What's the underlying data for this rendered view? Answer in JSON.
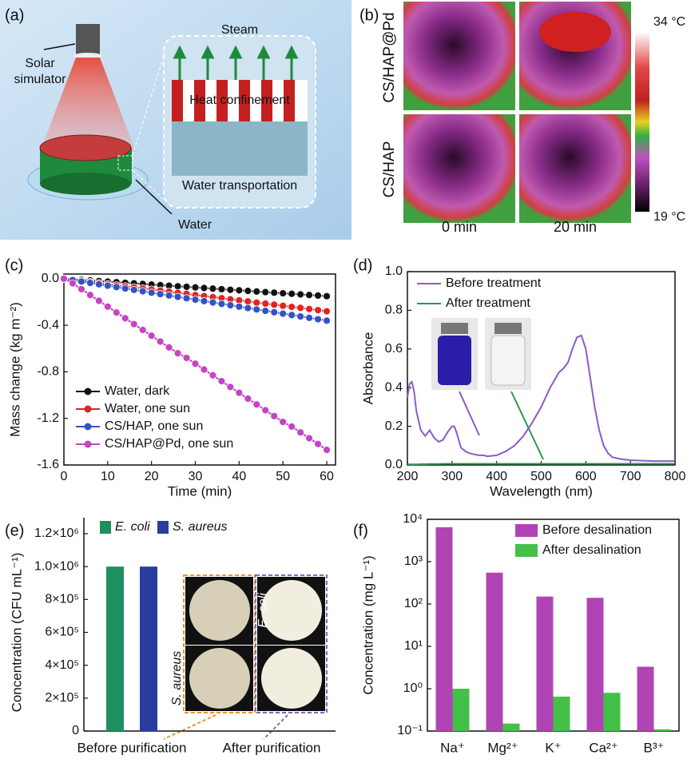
{
  "diagram": {
    "panel_label": "(a)",
    "source_label": [
      "Solar",
      "simulator"
    ],
    "steam": "Steam",
    "heat": "Heat confinement",
    "transport": "Water transportation",
    "water": "Water"
  },
  "thermal": {
    "panel_label": "(b)",
    "rows": [
      "CS/HAP@Pd",
      "CS/HAP"
    ],
    "columns": [
      "0 min",
      "20 min"
    ],
    "colorbar_max": "34 °C",
    "colorbar_min": "19 °C"
  },
  "chart_data": [
    {
      "panel_label": "(c)",
      "type": "line",
      "markers": true,
      "xlabel": "Time (min)",
      "ylabel": "Mass change (kg m⁻²)",
      "x": [
        0,
        2,
        4,
        6,
        8,
        10,
        12,
        14,
        16,
        18,
        20,
        22,
        24,
        26,
        28,
        30,
        32,
        34,
        36,
        38,
        40,
        42,
        44,
        46,
        48,
        50,
        52,
        54,
        56,
        58,
        60
      ],
      "xlim": [
        0,
        62
      ],
      "ylim": [
        -1.6,
        0.04
      ],
      "xticks": [
        0,
        10,
        20,
        30,
        40,
        50,
        60
      ],
      "yticks": [
        {
          "value": 0,
          "label": "0.0"
        },
        -0.4,
        -0.8,
        -1.2,
        -1.6
      ],
      "legend": "lower left",
      "series": [
        {
          "name": "Water, dark",
          "color": "#111111",
          "values": [
            0,
            -0.005,
            -0.01,
            -0.015,
            -0.02,
            -0.025,
            -0.03,
            -0.035,
            -0.04,
            -0.045,
            -0.05,
            -0.055,
            -0.06,
            -0.065,
            -0.07,
            -0.075,
            -0.08,
            -0.085,
            -0.09,
            -0.095,
            -0.1,
            -0.105,
            -0.11,
            -0.115,
            -0.12,
            -0.125,
            -0.13,
            -0.135,
            -0.14,
            -0.145,
            -0.15
          ]
        },
        {
          "name": "Water, one sun",
          "color": "#e02424",
          "values": [
            0,
            -0.009,
            -0.019,
            -0.028,
            -0.037,
            -0.047,
            -0.056,
            -0.065,
            -0.074,
            -0.084,
            -0.093,
            -0.102,
            -0.112,
            -0.121,
            -0.13,
            -0.14,
            -0.149,
            -0.158,
            -0.167,
            -0.177,
            -0.186,
            -0.195,
            -0.205,
            -0.214,
            -0.223,
            -0.233,
            -0.242,
            -0.251,
            -0.26,
            -0.27,
            -0.28
          ]
        },
        {
          "name": "CS/HAP, one sun",
          "color": "#3352c4",
          "values": [
            0,
            -0.012,
            -0.024,
            -0.036,
            -0.048,
            -0.06,
            -0.072,
            -0.084,
            -0.096,
            -0.108,
            -0.12,
            -0.132,
            -0.144,
            -0.156,
            -0.168,
            -0.18,
            -0.192,
            -0.204,
            -0.216,
            -0.228,
            -0.24,
            -0.252,
            -0.264,
            -0.276,
            -0.288,
            -0.3,
            -0.312,
            -0.324,
            -0.336,
            -0.348,
            -0.36
          ]
        },
        {
          "name": "CS/HAP@Pd, one sun",
          "color": "#c444c4",
          "values": [
            0,
            -0.04,
            -0.09,
            -0.14,
            -0.19,
            -0.24,
            -0.29,
            -0.34,
            -0.39,
            -0.44,
            -0.49,
            -0.54,
            -0.59,
            -0.64,
            -0.68,
            -0.73,
            -0.78,
            -0.83,
            -0.88,
            -0.93,
            -0.98,
            -1.03,
            -1.08,
            -1.13,
            -1.18,
            -1.23,
            -1.27,
            -1.32,
            -1.37,
            -1.42,
            -1.47
          ]
        }
      ]
    },
    {
      "panel_label": "(d)",
      "type": "line",
      "markers": false,
      "xlabel": "Wavelength (nm)",
      "ylabel": "Absorbance",
      "x": [
        200,
        205,
        210,
        215,
        220,
        230,
        240,
        250,
        260,
        270,
        280,
        290,
        300,
        305,
        310,
        320,
        330,
        340,
        350,
        360,
        370,
        380,
        400,
        420,
        440,
        460,
        480,
        500,
        520,
        540,
        550,
        560,
        570,
        580,
        590,
        600,
        610,
        620,
        630,
        640,
        650,
        660,
        680,
        700,
        750,
        800
      ],
      "xlim": [
        200,
        800
      ],
      "ylim": [
        0,
        1
      ],
      "xticks": [
        200,
        300,
        400,
        500,
        600,
        700,
        800
      ],
      "yticks": [
        {
          "value": 0,
          "label": "0.0"
        },
        0.2,
        0.4,
        0.6,
        0.8,
        {
          "value": 1,
          "label": "1.0"
        }
      ],
      "legend": "upper left",
      "series": [
        {
          "name": "Before treatment",
          "color": "#8a5cc4",
          "values": [
            0.35,
            0.42,
            0.43,
            0.38,
            0.28,
            0.18,
            0.15,
            0.18,
            0.14,
            0.12,
            0.13,
            0.17,
            0.2,
            0.2,
            0.17,
            0.09,
            0.07,
            0.06,
            0.055,
            0.05,
            0.05,
            0.045,
            0.05,
            0.07,
            0.1,
            0.15,
            0.22,
            0.3,
            0.4,
            0.48,
            0.5,
            0.53,
            0.6,
            0.66,
            0.67,
            0.6,
            0.45,
            0.3,
            0.18,
            0.1,
            0.06,
            0.04,
            0.03,
            0.025,
            0.02,
            0.02
          ]
        },
        {
          "name": "After treatment",
          "color": "#2a9a4a",
          "values": [
            0.003,
            0.003,
            0.003,
            0.003,
            0.003,
            0.004,
            0.004,
            0.005,
            0.005,
            0.005,
            0.006,
            0.006,
            0.006,
            0.006,
            0.006,
            0.006,
            0.006,
            0.006,
            0.006,
            0.006,
            0.006,
            0.006,
            0.006,
            0.006,
            0.006,
            0.006,
            0.006,
            0.006,
            0.006,
            0.006,
            0.006,
            0.006,
            0.006,
            0.006,
            0.006,
            0.006,
            0.006,
            0.006,
            0.006,
            0.006,
            0.006,
            0.006,
            0.006,
            0.006,
            0.006,
            0.006
          ]
        }
      ]
    },
    {
      "panel_label": "(e)",
      "type": "bar",
      "ylabel": "Concentration (CFU mL⁻¹)",
      "categories": [
        "Before purification",
        "After purification"
      ],
      "ylim": [
        0,
        1200000
      ],
      "yticks": [
        0,
        {
          "value": 200000,
          "label": "2×10⁵"
        },
        {
          "value": 400000,
          "label": "4×10⁵"
        },
        {
          "value": 600000,
          "label": "6×10⁵"
        },
        {
          "value": 800000,
          "label": "8×10⁵"
        },
        {
          "value": 1000000,
          "label": "1.0×10⁶"
        },
        {
          "value": 1200000,
          "label": "1.2×10⁶"
        }
      ],
      "legend": "upper left",
      "inset_labels": [
        "E. coli",
        "S. aureus"
      ],
      "series": [
        {
          "name": "E. coli",
          "color": "#1e9060",
          "values": [
            1000000,
            0
          ]
        },
        {
          "name": "S. aureus",
          "color": "#2a3d9e",
          "values": [
            1000000,
            0
          ]
        }
      ]
    },
    {
      "panel_label": "(f)",
      "type": "bar",
      "log_scale": true,
      "ylabel": "Concentration (mg L⁻¹)",
      "categories": [
        "Na⁺",
        "Mg²⁺",
        "K⁺",
        "Ca²⁺",
        "B³⁺"
      ],
      "ylim": [
        0.1,
        10000
      ],
      "yticks": [
        {
          "value": 0.1,
          "label": "10⁻¹"
        },
        {
          "value": 1,
          "label": "10⁰"
        },
        {
          "value": 10,
          "label": "10¹"
        },
        {
          "value": 100,
          "label": "10²"
        },
        {
          "value": 1000,
          "label": "10³"
        },
        {
          "value": 10000,
          "label": "10⁴"
        }
      ],
      "legend": "upper right",
      "series": [
        {
          "name": "Before desalination",
          "color": "#b044b4",
          "values": [
            6500,
            550,
            150,
            140,
            3.3
          ]
        },
        {
          "name": "After desalination",
          "color": "#44c048",
          "values": [
            1.0,
            0.15,
            0.65,
            0.8,
            0.11
          ]
        }
      ]
    }
  ]
}
